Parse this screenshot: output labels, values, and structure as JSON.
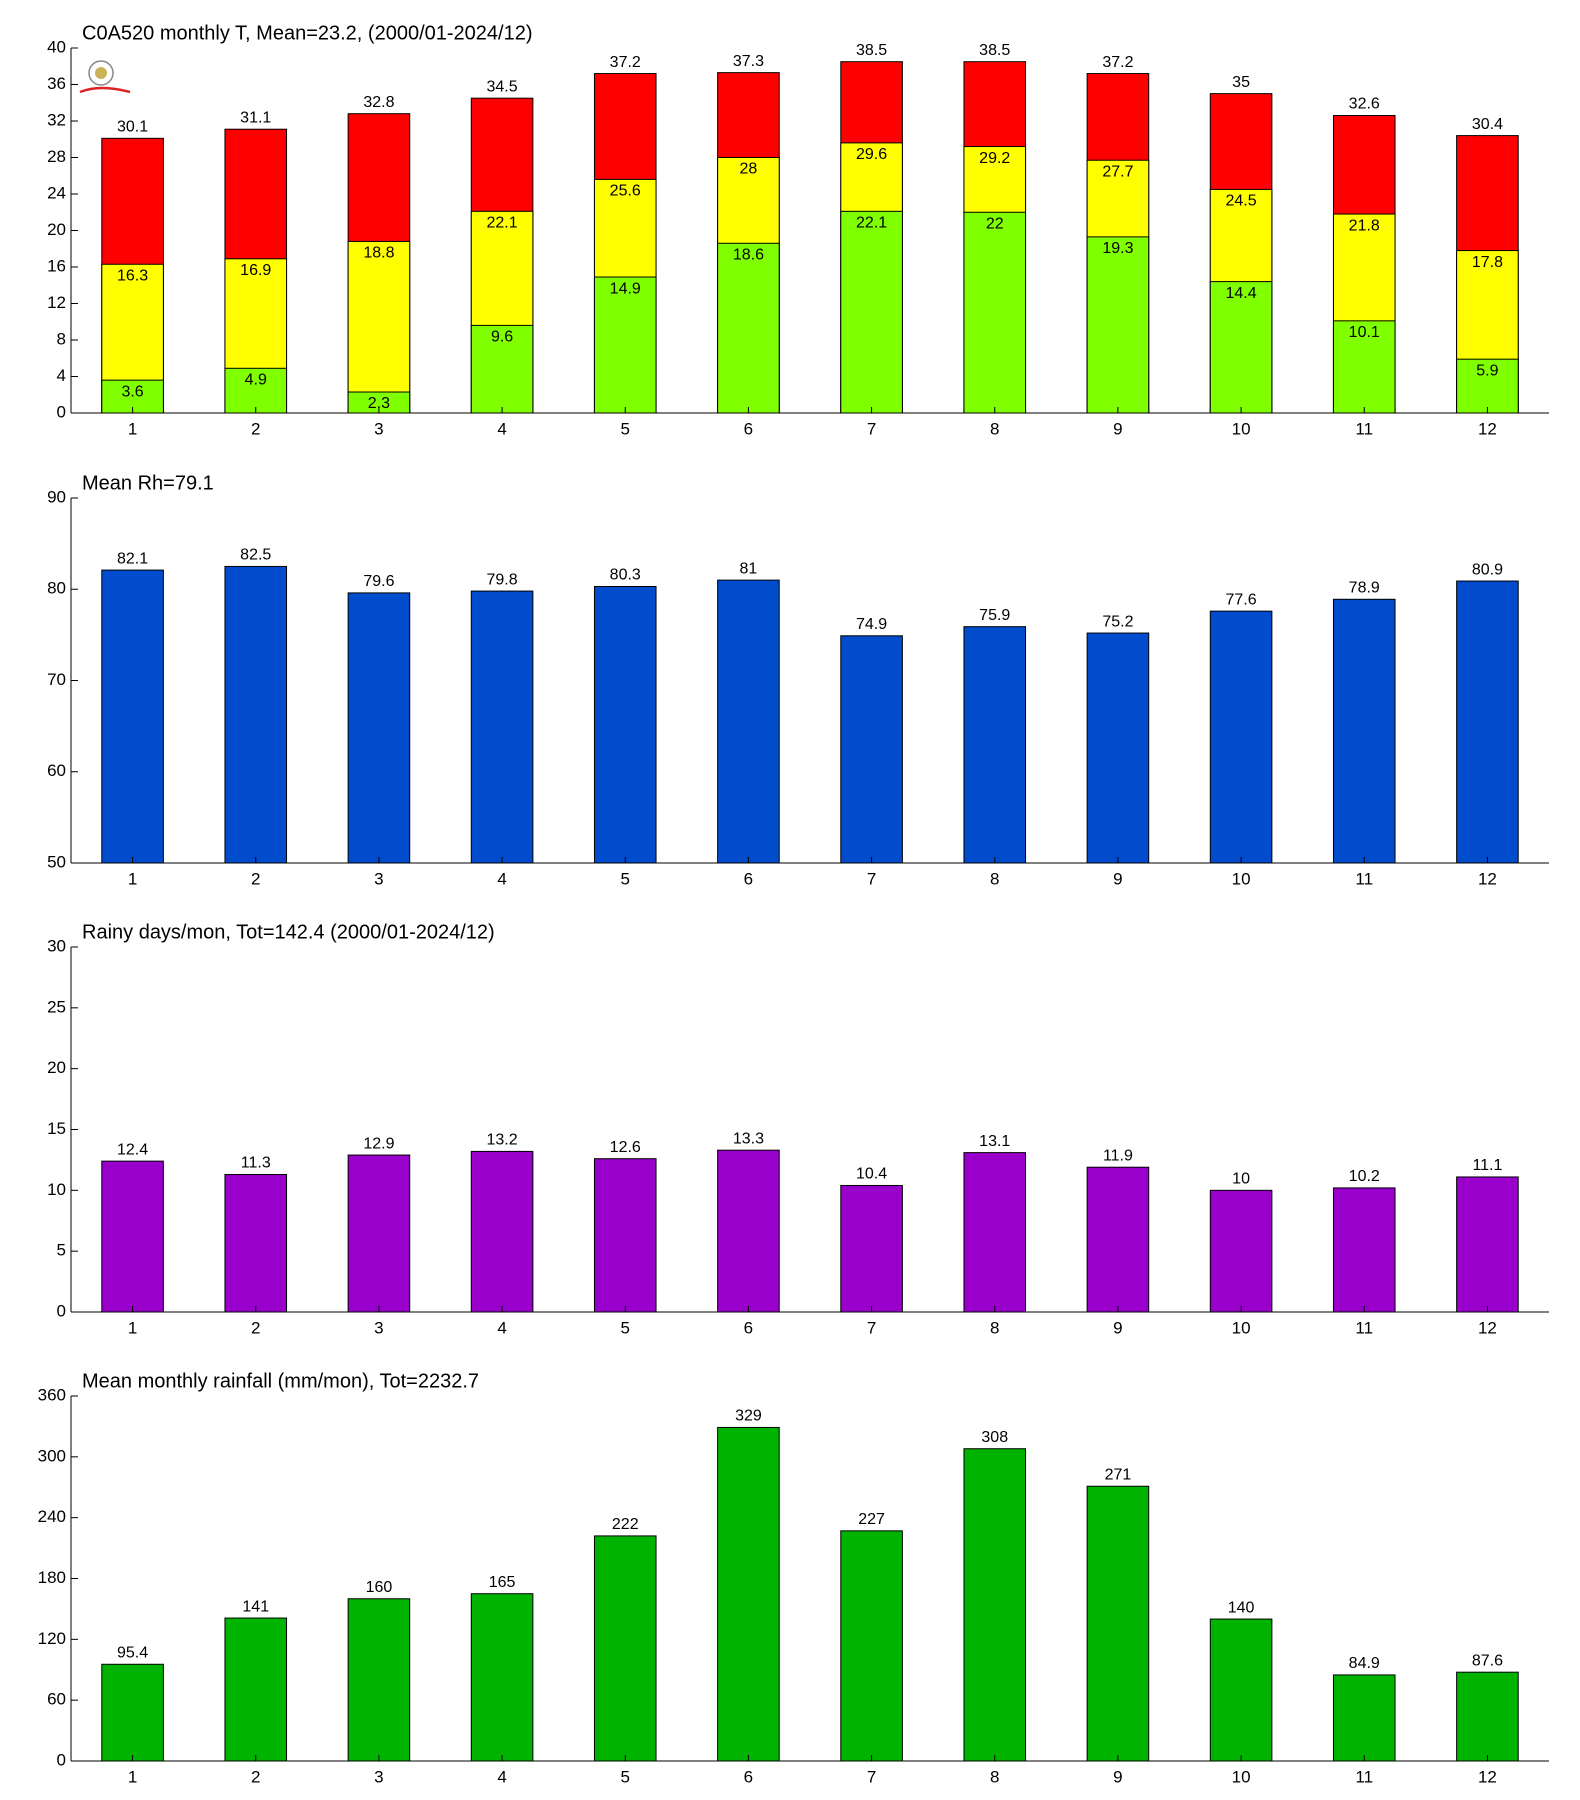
{
  "chart_data": [
    {
      "type": "bar",
      "title": "C0A520 monthly T, Mean=23.2, (2000/01-2024/12)",
      "categories": [
        "1",
        "2",
        "3",
        "4",
        "5",
        "6",
        "7",
        "8",
        "9",
        "10",
        "11",
        "12"
      ],
      "series": [
        {
          "color": "#ff0000",
          "values": [
            30.1,
            31.1,
            32.8,
            34.5,
            37.2,
            37.3,
            38.5,
            38.5,
            37.2,
            35,
            32.6,
            30.4
          ]
        },
        {
          "color": "#ffff00",
          "values": [
            16.3,
            16.9,
            18.8,
            22.1,
            25.6,
            28,
            29.6,
            29.2,
            27.7,
            24.5,
            21.8,
            17.8
          ]
        },
        {
          "color": "#80ff00",
          "values": [
            3.6,
            4.9,
            2.3,
            9.6,
            14.9,
            18.6,
            22.1,
            22,
            19.3,
            14.4,
            10.1,
            5.9
          ]
        }
      ],
      "ylim": [
        0,
        40
      ],
      "yticks": [
        0,
        4,
        8,
        12,
        16,
        20,
        24,
        28,
        32,
        36,
        40
      ]
    },
    {
      "type": "bar",
      "title": "Mean Rh=79.1",
      "categories": [
        "1",
        "2",
        "3",
        "4",
        "5",
        "6",
        "7",
        "8",
        "9",
        "10",
        "11",
        "12"
      ],
      "series": [
        {
          "color": "#004ccc",
          "values": [
            82.1,
            82.5,
            79.6,
            79.8,
            80.3,
            81,
            74.9,
            75.9,
            75.2,
            77.6,
            78.9,
            80.9
          ]
        }
      ],
      "ylim": [
        50,
        90
      ],
      "yticks": [
        50,
        60,
        70,
        80,
        90
      ]
    },
    {
      "type": "bar",
      "title": "Rainy days/mon, Tot=142.4 (2000/01-2024/12)",
      "categories": [
        "1",
        "2",
        "3",
        "4",
        "5",
        "6",
        "7",
        "8",
        "9",
        "10",
        "11",
        "12"
      ],
      "series": [
        {
          "color": "#9900cc",
          "values": [
            12.4,
            11.3,
            12.9,
            13.2,
            12.6,
            13.3,
            10.4,
            13.1,
            11.9,
            10,
            10.2,
            11.1
          ]
        }
      ],
      "ylim": [
        0,
        30
      ],
      "yticks": [
        0,
        5,
        10,
        15,
        20,
        25,
        30
      ]
    },
    {
      "type": "bar",
      "title": "Mean monthly rainfall (mm/mon), Tot=2232.7",
      "categories": [
        "1",
        "2",
        "3",
        "4",
        "5",
        "6",
        "7",
        "8",
        "9",
        "10",
        "11",
        "12"
      ],
      "series": [
        {
          "color": "#00b300",
          "values": [
            95.4,
            141,
            160,
            165,
            222,
            329,
            227,
            308,
            271,
            140,
            84.9,
            87.6
          ]
        }
      ],
      "ylim": [
        0,
        360
      ],
      "yticks": [
        0,
        60,
        120,
        180,
        240,
        300,
        360
      ]
    }
  ]
}
